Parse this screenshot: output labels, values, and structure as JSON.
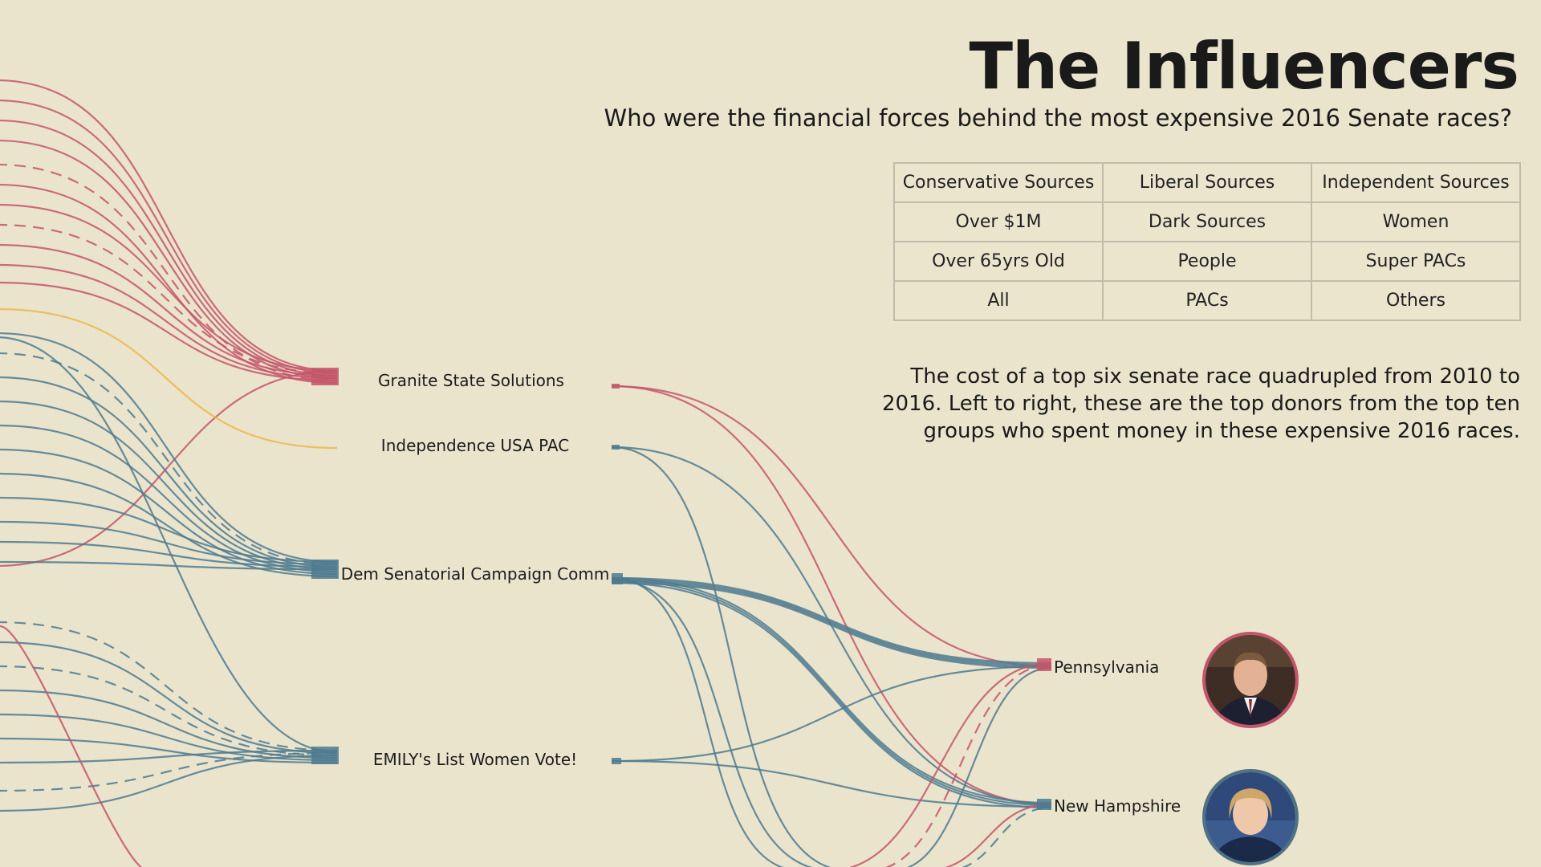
{
  "header": {
    "title": "The Influencers",
    "subtitle": "Who were the financial forces behind the most expensive 2016 Senate races?"
  },
  "filters": [
    [
      "Conservative Sources",
      "Liberal Sources",
      "Independent Sources"
    ],
    [
      "Over $1M",
      "Dark Sources",
      "Women"
    ],
    [
      "Over 65yrs Old",
      "People",
      "Super PACs"
    ],
    [
      "All",
      "PACs",
      "Others"
    ]
  ],
  "description": "The cost of a top six senate race quadrupled from 2010 to 2016. Left to right, these are the top donors from the top ten groups who spent money in these expensive 2016 races.",
  "donors": [
    {
      "label": "Granite State Solutions"
    },
    {
      "label": "Independence USA PAC"
    },
    {
      "label": "Dem Senatorial Campaign Comm"
    },
    {
      "label": "EMILY's List Women Vote!"
    }
  ],
  "states": [
    {
      "label": "Pennsylvania",
      "portrait": "candidate-portrait-pennsylvania",
      "ring": "#c4556a"
    },
    {
      "label": "New Hampshire",
      "portrait": "candidate-portrait-new-hampshire",
      "ring": "#4e7284"
    }
  ],
  "colors": {
    "background": "#eae4cc",
    "conservative": "#c4556a",
    "liberal": "#4e7a8f",
    "independent": "#efb64a"
  }
}
